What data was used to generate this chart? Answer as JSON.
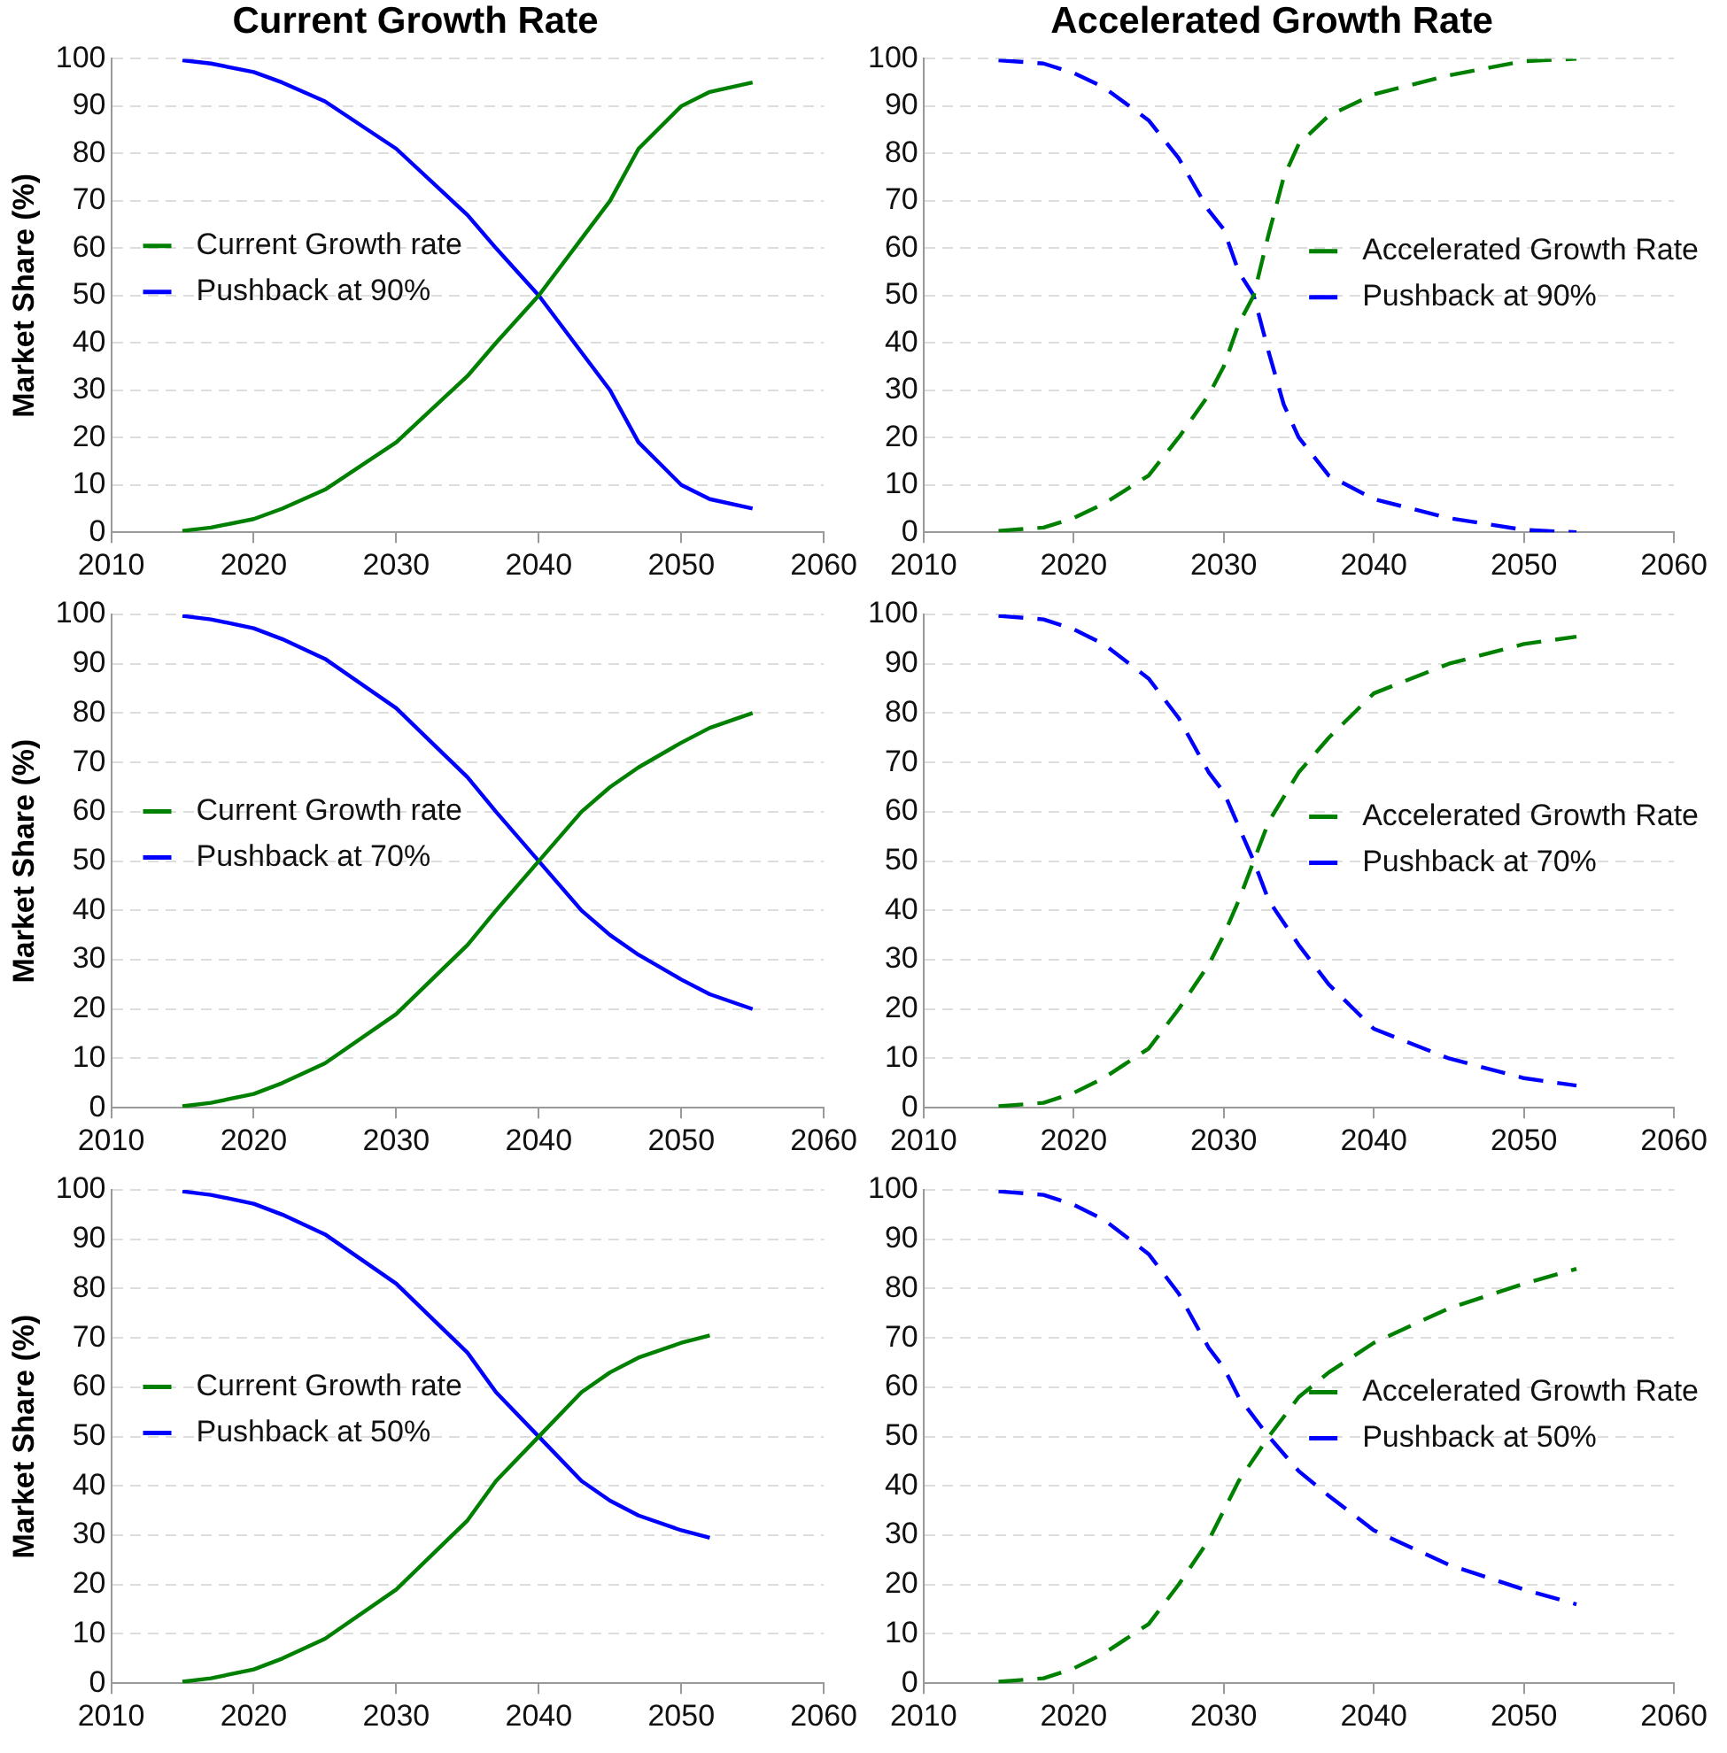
{
  "chart_data": [
    {
      "type": "line",
      "title": "Current Growth Rate",
      "ylabel": "Market Share (%)",
      "xlim": [
        2010,
        2060
      ],
      "xticks": [
        2010,
        2020,
        2030,
        2040,
        2050,
        2060
      ],
      "ylim": [
        0,
        100
      ],
      "yticks": [
        0,
        10,
        20,
        30,
        40,
        50,
        60,
        70,
        80,
        90,
        100
      ],
      "grid": "y",
      "legend": "left",
      "line_style": "solid",
      "series": [
        {
          "name": "Current Growth rate",
          "color": "#008000",
          "x": [
            2015,
            2017,
            2020,
            2022,
            2025,
            2030,
            2035,
            2037,
            2040,
            2043,
            2045,
            2047,
            2050,
            2052,
            2055
          ],
          "values": [
            0.3,
            1,
            2.8,
            5,
            9,
            19,
            33,
            40,
            50,
            62,
            70,
            81,
            90,
            93,
            95
          ]
        },
        {
          "name": "Pushback at 90%",
          "color": "#0000ff",
          "x": [
            2015,
            2017,
            2020,
            2022,
            2025,
            2030,
            2035,
            2037,
            2040,
            2043,
            2045,
            2047,
            2050,
            2052,
            2055
          ],
          "values": [
            99.7,
            99,
            97.2,
            95,
            91,
            81,
            67,
            60,
            50,
            38,
            30,
            19,
            10,
            7,
            5
          ]
        }
      ]
    },
    {
      "type": "line",
      "title": "Accelerated Growth Rate",
      "xlim": [
        2010,
        2060
      ],
      "xticks": [
        2010,
        2020,
        2030,
        2040,
        2050,
        2060
      ],
      "ylim": [
        0,
        100
      ],
      "yticks": [
        0,
        10,
        20,
        30,
        40,
        50,
        60,
        70,
        80,
        90,
        100
      ],
      "grid": "y",
      "legend": "right",
      "line_style": "dashed",
      "series": [
        {
          "name": "Accelerated Growth Rate",
          "color": "#008000",
          "x": [
            2015,
            2018,
            2020,
            2022,
            2025,
            2027,
            2029,
            2030,
            2031,
            2032,
            2033,
            2034,
            2035,
            2037,
            2040,
            2045,
            2050,
            2053.5
          ],
          "values": [
            0.3,
            1,
            3,
            6,
            12,
            20,
            29,
            35,
            44,
            50,
            63,
            75,
            82,
            88,
            92.5,
            96.5,
            99.5,
            100
          ]
        },
        {
          "name": "Pushback at 90%",
          "color": "#0000ff",
          "x": [
            2015,
            2018,
            2020,
            2022,
            2025,
            2027,
            2029,
            2030,
            2031,
            2032,
            2033,
            2034,
            2035,
            2037,
            2040,
            2045,
            2050,
            2053.5
          ],
          "values": [
            99.7,
            99,
            97,
            94,
            87,
            79,
            68,
            64,
            55,
            50,
            38,
            27,
            20,
            12,
            7,
            3,
            0.5,
            0
          ]
        }
      ]
    },
    {
      "type": "line",
      "ylabel": "Market Share (%)",
      "xlim": [
        2010,
        2060
      ],
      "xticks": [
        2010,
        2020,
        2030,
        2040,
        2050,
        2060
      ],
      "ylim": [
        0,
        100
      ],
      "yticks": [
        0,
        10,
        20,
        30,
        40,
        50,
        60,
        70,
        80,
        90,
        100
      ],
      "grid": "y",
      "legend": "left",
      "line_style": "solid",
      "series": [
        {
          "name": "Current Growth rate",
          "color": "#008000",
          "x": [
            2015,
            2017,
            2020,
            2022,
            2025,
            2030,
            2035,
            2037,
            2040,
            2043,
            2045,
            2047,
            2050,
            2052,
            2055
          ],
          "values": [
            0.3,
            1,
            2.8,
            5,
            9,
            19,
            33,
            40,
            50,
            60,
            65,
            69,
            74,
            77,
            80
          ]
        },
        {
          "name": "Pushback at 70%",
          "color": "#0000ff",
          "x": [
            2015,
            2017,
            2020,
            2022,
            2025,
            2030,
            2035,
            2037,
            2040,
            2043,
            2045,
            2047,
            2050,
            2052,
            2055
          ],
          "values": [
            99.7,
            99,
            97.2,
            95,
            91,
            81,
            67,
            60,
            50,
            40,
            35,
            31,
            26,
            23,
            20
          ]
        }
      ]
    },
    {
      "type": "line",
      "xlim": [
        2010,
        2060
      ],
      "xticks": [
        2010,
        2020,
        2030,
        2040,
        2050,
        2060
      ],
      "ylim": [
        0,
        100
      ],
      "yticks": [
        0,
        10,
        20,
        30,
        40,
        50,
        60,
        70,
        80,
        90,
        100
      ],
      "grid": "y",
      "legend": "right",
      "line_style": "dashed",
      "series": [
        {
          "name": "Accelerated Growth Rate",
          "color": "#008000",
          "x": [
            2015,
            2018,
            2020,
            2022,
            2025,
            2027,
            2029,
            2030,
            2031,
            2032,
            2033,
            2035,
            2037,
            2040,
            2045,
            2050,
            2053.5
          ],
          "values": [
            0.3,
            1,
            3,
            6,
            12,
            20,
            29,
            35,
            42,
            50,
            58,
            68,
            75,
            84,
            90,
            94,
            95.5
          ]
        },
        {
          "name": "Pushback at 70%",
          "color": "#0000ff",
          "x": [
            2015,
            2018,
            2020,
            2022,
            2025,
            2027,
            2029,
            2030,
            2031,
            2032,
            2033,
            2035,
            2037,
            2040,
            2045,
            2050,
            2053.5
          ],
          "values": [
            99.7,
            99,
            97,
            94,
            87,
            79,
            68,
            64,
            57,
            50,
            42,
            33,
            25,
            16,
            10,
            6,
            4.5
          ]
        }
      ]
    },
    {
      "type": "line",
      "ylabel": "Market Share (%)",
      "xlim": [
        2010,
        2060
      ],
      "xticks": [
        2010,
        2020,
        2030,
        2040,
        2050,
        2060
      ],
      "ylim": [
        0,
        100
      ],
      "yticks": [
        0,
        10,
        20,
        30,
        40,
        50,
        60,
        70,
        80,
        90,
        100
      ],
      "grid": "y",
      "legend": "left",
      "line_style": "solid",
      "series": [
        {
          "name": "Current Growth rate",
          "color": "#008000",
          "x": [
            2015,
            2017,
            2020,
            2022,
            2025,
            2030,
            2035,
            2037,
            2040,
            2043,
            2045,
            2047,
            2050,
            2052
          ],
          "values": [
            0.3,
            1,
            2.8,
            5,
            9,
            19,
            33,
            41,
            50,
            59,
            63,
            66,
            69,
            70.5
          ]
        },
        {
          "name": "Pushback at 50%",
          "color": "#0000ff",
          "x": [
            2015,
            2017,
            2020,
            2022,
            2025,
            2030,
            2035,
            2037,
            2040,
            2043,
            2045,
            2047,
            2050,
            2052
          ],
          "values": [
            99.7,
            99,
            97.2,
            95,
            91,
            81,
            67,
            59,
            50,
            41,
            37,
            34,
            31,
            29.5
          ]
        }
      ]
    },
    {
      "type": "line",
      "xlim": [
        2010,
        2060
      ],
      "xticks": [
        2010,
        2020,
        2030,
        2040,
        2050,
        2060
      ],
      "ylim": [
        0,
        100
      ],
      "yticks": [
        0,
        10,
        20,
        30,
        40,
        50,
        60,
        70,
        80,
        90,
        100
      ],
      "grid": "y",
      "legend": "right",
      "line_style": "dashed",
      "series": [
        {
          "name": "Accelerated Growth Rate",
          "color": "#008000",
          "x": [
            2015,
            2018,
            2020,
            2022,
            2025,
            2027,
            2029,
            2030,
            2031,
            2033,
            2035,
            2037,
            2040,
            2045,
            2050,
            2053.5
          ],
          "values": [
            0.3,
            1,
            3,
            6,
            12,
            20,
            29,
            35,
            41,
            50,
            58,
            63,
            69,
            76,
            81,
            84
          ]
        },
        {
          "name": "Pushback at 50%",
          "color": "#0000ff",
          "x": [
            2015,
            2018,
            2020,
            2022,
            2025,
            2027,
            2029,
            2030,
            2031,
            2033,
            2035,
            2037,
            2040,
            2045,
            2050,
            2053.5
          ],
          "values": [
            99.7,
            99,
            97,
            94,
            87,
            79,
            68,
            64,
            58,
            50,
            43,
            38,
            31,
            24,
            19,
            16
          ]
        }
      ]
    }
  ]
}
